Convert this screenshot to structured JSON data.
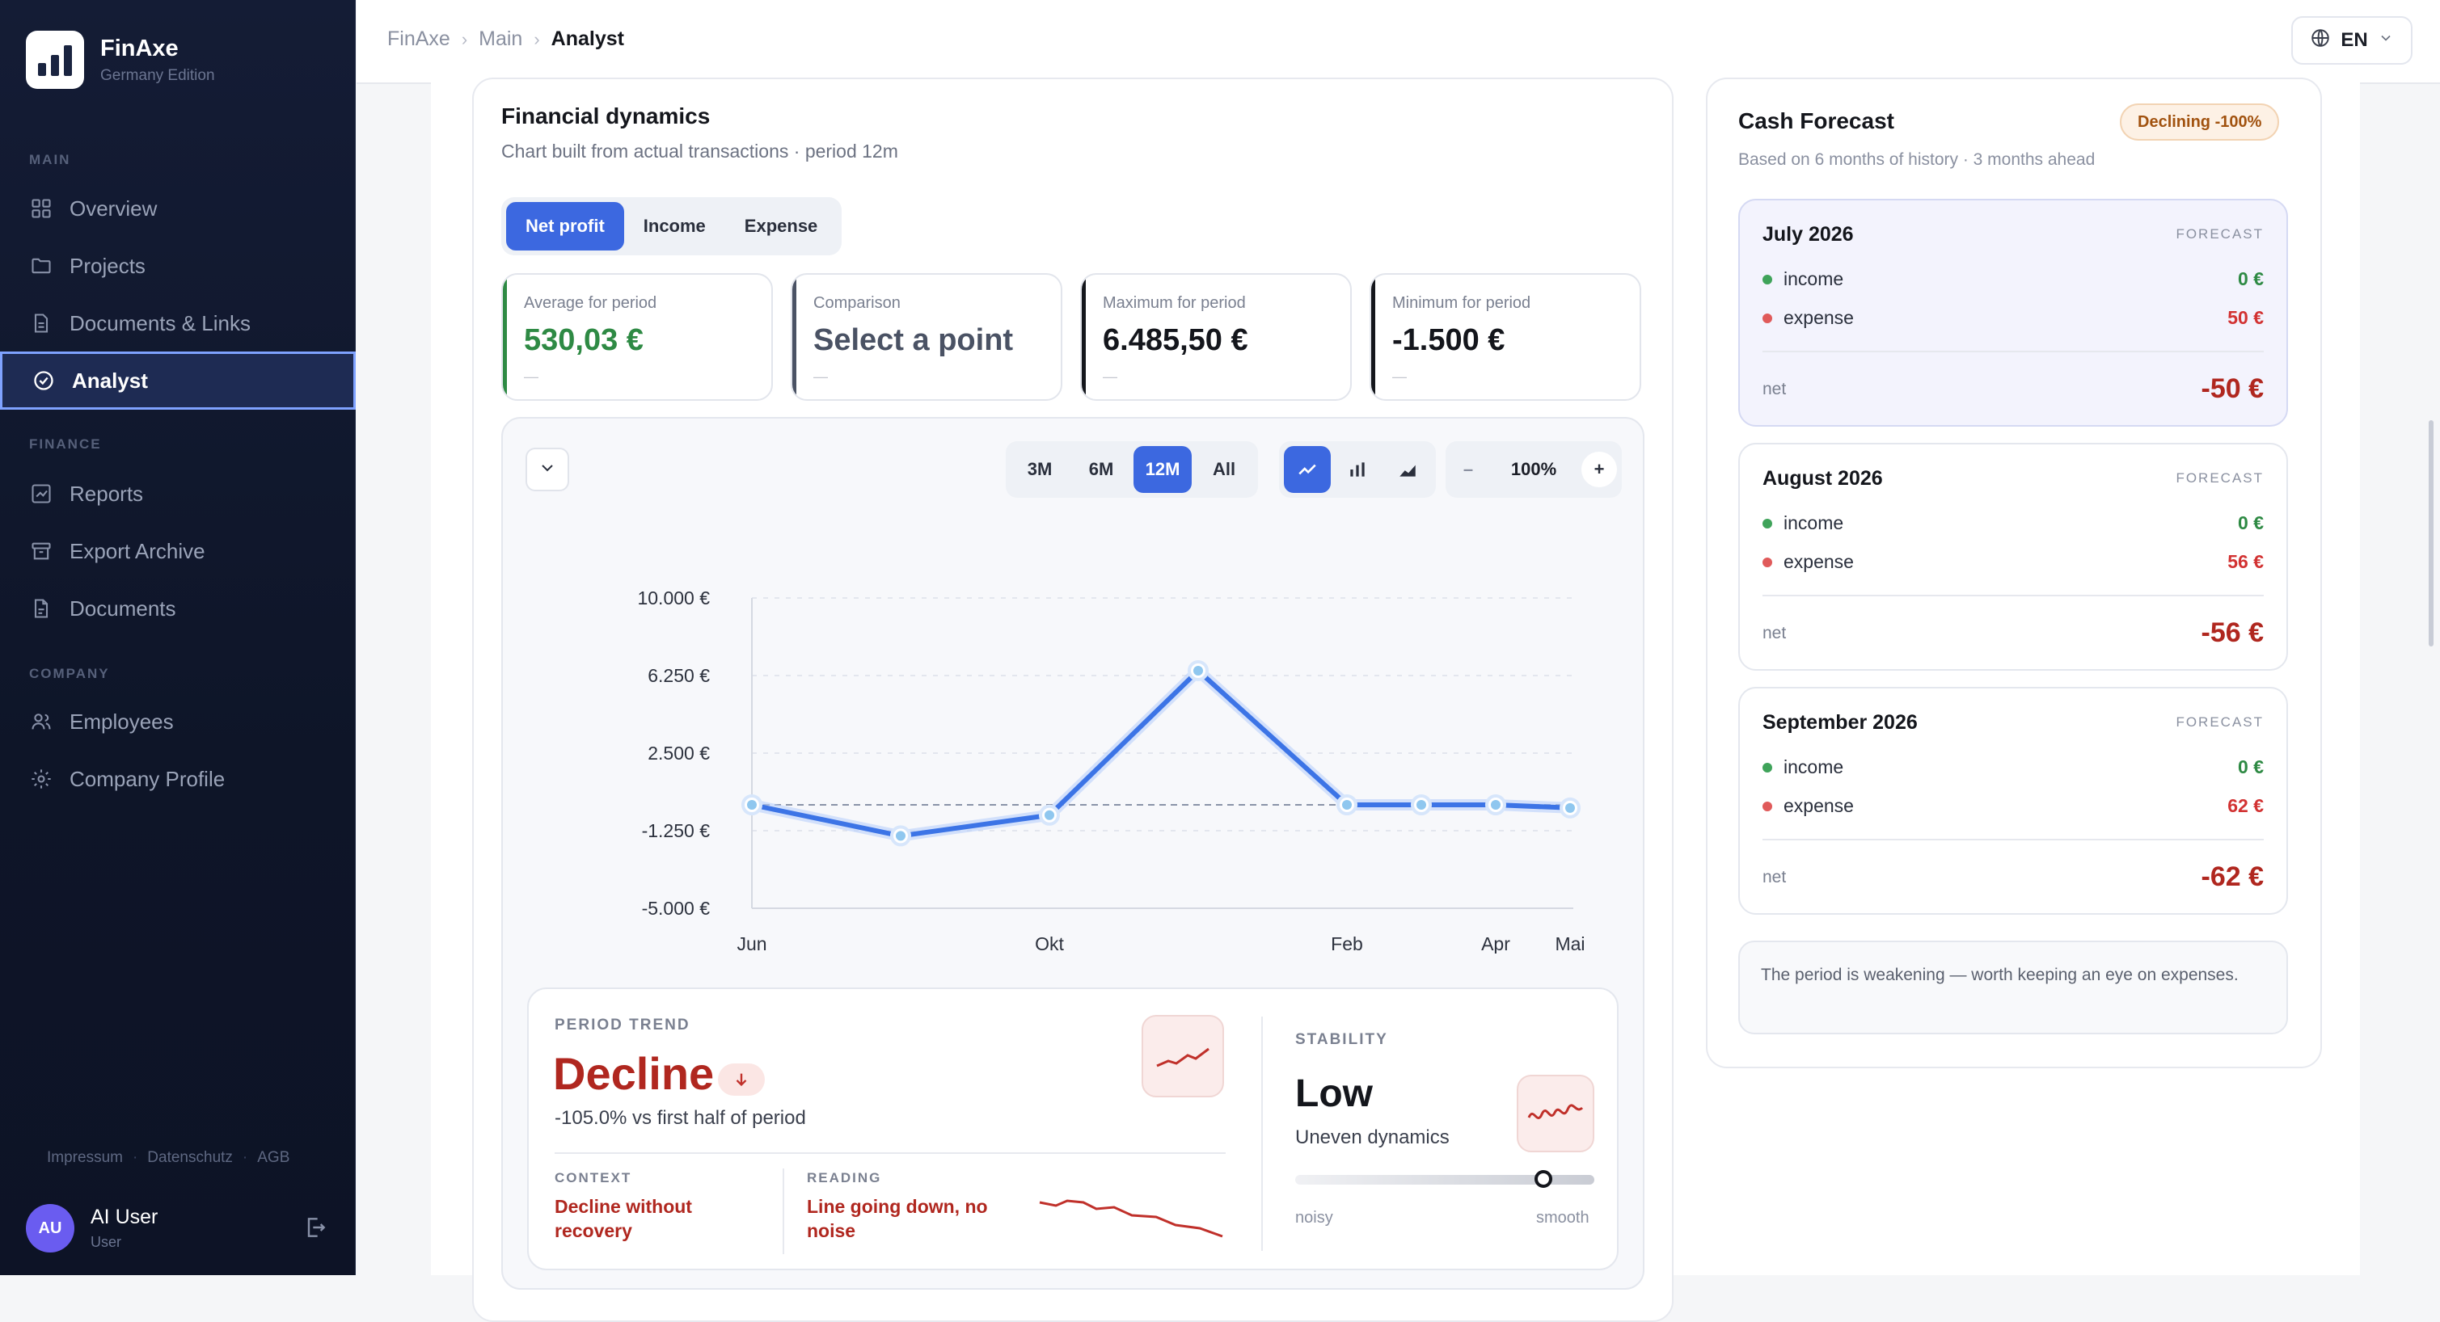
{
  "brand": {
    "name": "FinAxe",
    "edition": "Germany Edition"
  },
  "nav": {
    "sections": [
      {
        "label": "MAIN",
        "items": [
          {
            "label": "Overview",
            "icon": "grid-icon"
          },
          {
            "label": "Projects",
            "icon": "folder-icon"
          },
          {
            "label": "Documents & Links",
            "icon": "document-icon"
          },
          {
            "label": "Analyst",
            "icon": "check-circle-icon",
            "active": true
          }
        ]
      },
      {
        "label": "FINANCE",
        "items": [
          {
            "label": "Reports",
            "icon": "chart-icon"
          },
          {
            "label": "Export Archive",
            "icon": "archive-icon"
          },
          {
            "label": "Documents",
            "icon": "file-icon"
          }
        ]
      },
      {
        "label": "COMPANY",
        "items": [
          {
            "label": "Employees",
            "icon": "users-icon"
          },
          {
            "label": "Company Profile",
            "icon": "gear-icon"
          }
        ]
      }
    ]
  },
  "legal": [
    "Impressum",
    "Datenschutz",
    "AGB"
  ],
  "user": {
    "initials": "AU",
    "name": "AI User",
    "role": "User"
  },
  "breadcrumb": [
    "FinAxe",
    "Main",
    "Analyst"
  ],
  "language": "EN",
  "dynamics": {
    "title": "Financial dynamics",
    "subtitle": "Chart built from actual transactions · period 12m",
    "tabs": [
      "Net profit",
      "Income",
      "Expense"
    ],
    "active_tab": "Net profit",
    "metrics": [
      {
        "label": "Average for period",
        "value": "530,03 €",
        "placeholder": "—",
        "accent": "#2e8a44",
        "value_color": "#2e8a44"
      },
      {
        "label": "Comparison",
        "value": "Select a point",
        "placeholder": "—",
        "accent": "#4a5264",
        "value_color": "#4a5264"
      },
      {
        "label": "Maximum for period",
        "value": "6.485,50 €",
        "placeholder": "—",
        "accent": "#14161c",
        "value_color": "#14161c"
      },
      {
        "label": "Minimum for period",
        "value": "-1.500 €",
        "placeholder": "—",
        "accent": "#14161c",
        "value_color": "#14161c"
      }
    ],
    "ranges": [
      "3M",
      "6M",
      "12M",
      "All"
    ],
    "active_range": "12M",
    "chart_types": [
      "line-chart-icon",
      "bar-chart-icon",
      "area-chart-icon"
    ],
    "zoom": {
      "minus": "–",
      "value": "100%",
      "plus": "+"
    }
  },
  "chart_data": {
    "type": "line",
    "y_ticks": [
      "10.000 €",
      "6.250 €",
      "2.500 €",
      "-1.250 €",
      "-5.000 €"
    ],
    "x_tick_labels": [
      "Jun",
      "Okt",
      "Feb",
      "Apr",
      "Mai"
    ],
    "ylim": [
      -5000,
      10000
    ],
    "y_tick_values": [
      10000,
      6250,
      2500,
      -1250,
      -5000
    ],
    "points": [
      {
        "x": "2025-06",
        "y": 0
      },
      {
        "x": "2025-08",
        "y": -1500
      },
      {
        "x": "2025-10",
        "y": -500
      },
      {
        "x": "2025-12",
        "y": 6485.5
      },
      {
        "x": "2026-02",
        "y": 0
      },
      {
        "x": "2026-03",
        "y": 0
      },
      {
        "x": "2026-04",
        "y": 0
      },
      {
        "x": "2026-05",
        "y": -150
      }
    ],
    "reference_line": 0,
    "grid": true,
    "color": "#3c74e6"
  },
  "trend": {
    "caption": "PERIOD TREND",
    "label": "Decline",
    "delta": "-105.0% vs first half of period",
    "context_caption": "CONTEXT",
    "context_text": "Decline without recovery",
    "reading_caption": "READING",
    "reading_text": "Line going down, no noise"
  },
  "stability": {
    "caption": "STABILITY",
    "label": "Low",
    "description": "Uneven dynamics",
    "level": 0.83,
    "min_label": "noisy",
    "max_label": "smooth"
  },
  "forecast": {
    "title": "Cash Forecast",
    "badge": "Declining -100%",
    "subtitle": "Based on 6 months of history · 3 months ahead",
    "tag": "FORECAST",
    "income_label": "income",
    "expense_label": "expense",
    "net_label": "net",
    "months": [
      {
        "month": "July 2026",
        "income": "0 €",
        "expense": "50 €",
        "net": "-50 €"
      },
      {
        "month": "August 2026",
        "income": "0 €",
        "expense": "56 €",
        "net": "-56 €"
      },
      {
        "month": "September 2026",
        "income": "0 €",
        "expense": "62 €",
        "net": "-62 €"
      }
    ],
    "note": "The period is weakening — worth keeping an eye on expenses."
  }
}
